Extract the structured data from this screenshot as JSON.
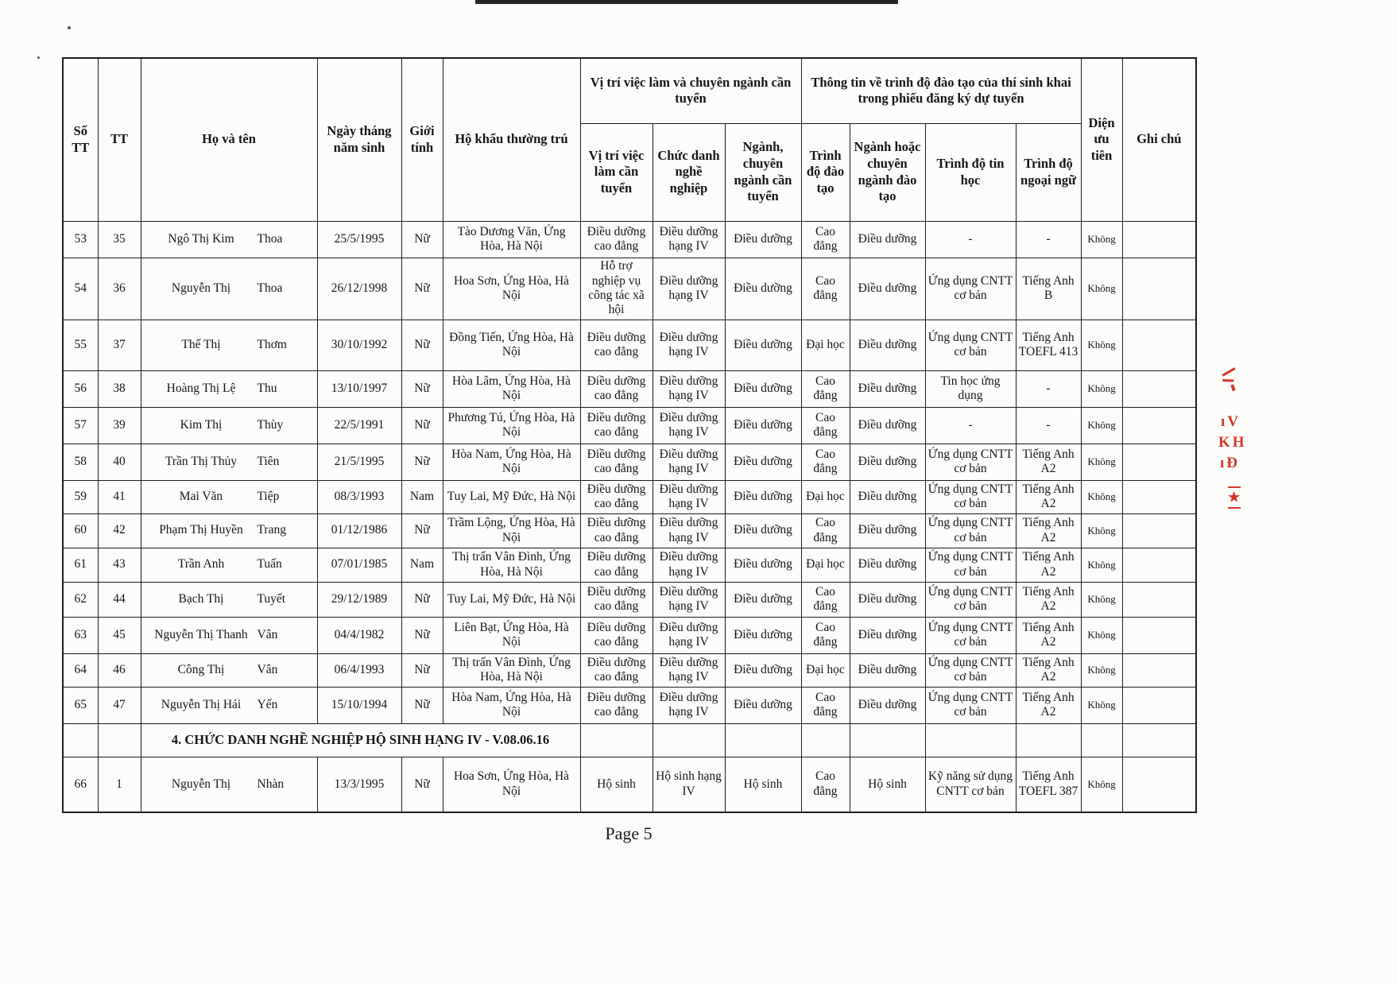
{
  "page": {
    "footer": "Page 5"
  },
  "table": {
    "columns": {
      "so_tt": "Số TT",
      "tt": "TT",
      "name": "Họ và tên",
      "dob": "Ngày tháng năm sinh",
      "gender": "Giới tính",
      "address": "Hộ khẩu thường trú",
      "position": "Vị trí việc làm cần tuyển",
      "title": "Chức danh nghề nghiệp",
      "major": "Ngành, chuyên ngành cần tuyển",
      "degree": "Trình độ đào tạo",
      "trained_major": "Ngành hoặc chuyên ngành đào tạo",
      "it": "Trình độ tin học",
      "language": "Trình độ ngoại ngữ",
      "priority": "Diện ưu tiên",
      "note": "Ghi chú"
    },
    "groups": {
      "recruitment": "Vị trí việc làm và chuyên ngành cần tuyển",
      "training": "Thông tin về trình độ đào tạo của thí sinh khai trong phiếu đăng ký dự tuyển"
    },
    "rows": [
      {
        "so_tt": "53",
        "tt": "35",
        "ho": "Ngô Thị Kim",
        "ten": "Thoa",
        "dob": "25/5/1995",
        "gender": "Nữ",
        "address": "Tào Dương Văn, Ứng Hòa, Hà Nội",
        "position": "Điều dưỡng cao đẳng",
        "title": "Điều dưỡng hạng IV",
        "major": "Điều dưỡng",
        "degree": "Cao đẳng",
        "trained_major": "Điều dưỡng",
        "it": "-",
        "language": "-",
        "priority": "Không",
        "note": ""
      },
      {
        "so_tt": "54",
        "tt": "36",
        "ho": "Nguyễn Thị",
        "ten": "Thoa",
        "dob": "26/12/1998",
        "gender": "Nữ",
        "address": "Hoa Sơn, Ứng Hòa, Hà Nội",
        "position": "Hỗ trợ nghiệp vụ công tác xã hội",
        "title": "Điều dưỡng hạng IV",
        "major": "Điều dưỡng",
        "degree": "Cao đẳng",
        "trained_major": "Điều dưỡng",
        "it": "Ứng dụng CNTT cơ bản",
        "language": "Tiếng Anh B",
        "priority": "Không",
        "note": ""
      },
      {
        "so_tt": "55",
        "tt": "37",
        "ho": "Thế Thị",
        "ten": "Thơm",
        "dob": "30/10/1992",
        "gender": "Nữ",
        "address": "Đồng Tiến, Ứng Hòa, Hà Nội",
        "position": "Điều dưỡng cao đẳng",
        "title": "Điều dưỡng hạng IV",
        "major": "Điều dưỡng",
        "degree": "Đại học",
        "trained_major": "Điều dưỡng",
        "it": "Ứng dụng CNTT cơ bản",
        "language": "Tiếng Anh TOEFL 413",
        "priority": "Không",
        "note": ""
      },
      {
        "so_tt": "56",
        "tt": "38",
        "ho": "Hoàng Thị Lệ",
        "ten": "Thu",
        "dob": "13/10/1997",
        "gender": "Nữ",
        "address": "Hòa Lâm, Ứng Hòa, Hà Nội",
        "position": "Điều dưỡng cao đẳng",
        "title": "Điều dưỡng hạng IV",
        "major": "Điều dưỡng",
        "degree": "Cao đẳng",
        "trained_major": "Điều dưỡng",
        "it": "Tin học ứng dụng",
        "language": "-",
        "priority": "Không",
        "note": ""
      },
      {
        "so_tt": "57",
        "tt": "39",
        "ho": "Kim Thị",
        "ten": "Thùy",
        "dob": "22/5/1991",
        "gender": "Nữ",
        "address": "Phương Tú, Ứng Hòa, Hà Nội",
        "position": "Điều dưỡng cao đẳng",
        "title": "Điều dưỡng hạng IV",
        "major": "Điều dưỡng",
        "degree": "Cao đẳng",
        "trained_major": "Điều dưỡng",
        "it": "-",
        "language": "-",
        "priority": "Không",
        "note": ""
      },
      {
        "so_tt": "58",
        "tt": "40",
        "ho": "Trần Thị Thủy",
        "ten": "Tiên",
        "dob": "21/5/1995",
        "gender": "Nữ",
        "address": "Hòa Nam, Ứng Hòa, Hà Nội",
        "position": "Điều dưỡng cao đẳng",
        "title": "Điều dưỡng hạng IV",
        "major": "Điều dưỡng",
        "degree": "Cao đẳng",
        "trained_major": "Điều dưỡng",
        "it": "Ứng dụng CNTT cơ bản",
        "language": "Tiếng Anh A2",
        "priority": "Không",
        "note": ""
      },
      {
        "so_tt": "59",
        "tt": "41",
        "ho": "Mai Văn",
        "ten": "Tiệp",
        "dob": "08/3/1993",
        "gender": "Nam",
        "address": "Tuy Lai, Mỹ Đức, Hà Nội",
        "position": "Điều dưỡng cao đẳng",
        "title": "Điều dưỡng hạng IV",
        "major": "Điều dưỡng",
        "degree": "Đại học",
        "trained_major": "Điều dưỡng",
        "it": "Ứng dụng CNTT cơ bản",
        "language": "Tiếng Anh A2",
        "priority": "Không",
        "note": ""
      },
      {
        "so_tt": "60",
        "tt": "42",
        "ho": "Phạm Thị Huyền",
        "ten": "Trang",
        "dob": "01/12/1986",
        "gender": "Nữ",
        "address": "Trầm Lộng, Ứng Hòa, Hà Nội",
        "position": "Điều dưỡng cao đẳng",
        "title": "Điều dưỡng hạng IV",
        "major": "Điều dưỡng",
        "degree": "Cao đẳng",
        "trained_major": "Điều dưỡng",
        "it": "Ứng dụng CNTT cơ bản",
        "language": "Tiếng Anh A2",
        "priority": "Không",
        "note": ""
      },
      {
        "so_tt": "61",
        "tt": "43",
        "ho": "Trần Anh",
        "ten": "Tuấn",
        "dob": "07/01/1985",
        "gender": "Nam",
        "address": "Thị trấn Vân Đình, Ứng Hòa, Hà Nội",
        "position": "Điều dưỡng cao đẳng",
        "title": "Điều dưỡng hạng IV",
        "major": "Điều dưỡng",
        "degree": "Đại học",
        "trained_major": "Điều dưỡng",
        "it": "Ứng dụng CNTT cơ bản",
        "language": "Tiếng Anh A2",
        "priority": "Không",
        "note": ""
      },
      {
        "so_tt": "62",
        "tt": "44",
        "ho": "Bạch Thị",
        "ten": "Tuyết",
        "dob": "29/12/1989",
        "gender": "Nữ",
        "address": "Tuy Lai, Mỹ Đức, Hà Nội",
        "position": "Điều dưỡng cao đẳng",
        "title": "Điều dưỡng hạng IV",
        "major": "Điều dưỡng",
        "degree": "Cao đẳng",
        "trained_major": "Điều dưỡng",
        "it": "Ứng dụng CNTT cơ bản",
        "language": "Tiếng Anh A2",
        "priority": "Không",
        "note": ""
      },
      {
        "so_tt": "63",
        "tt": "45",
        "ho": "Nguyễn Thị Thanh",
        "ten": "Vân",
        "dob": "04/4/1982",
        "gender": "Nữ",
        "address": "Liên Bạt, Ứng Hòa, Hà Nội",
        "position": "Điều dưỡng cao đẳng",
        "title": "Điều dưỡng hạng IV",
        "major": "Điều dưỡng",
        "degree": "Cao đẳng",
        "trained_major": "Điều dưỡng",
        "it": "Ứng dụng CNTT cơ bản",
        "language": "Tiếng Anh A2",
        "priority": "Không",
        "note": ""
      },
      {
        "so_tt": "64",
        "tt": "46",
        "ho": "Công Thị",
        "ten": "Vân",
        "dob": "06/4/1993",
        "gender": "Nữ",
        "address": "Thị trấn Vân Đình, Ứng Hòa, Hà Nội",
        "position": "Điều dưỡng cao đẳng",
        "title": "Điều dưỡng hạng IV",
        "major": "Điều dưỡng",
        "degree": "Đại học",
        "trained_major": "Điều dưỡng",
        "it": "Ứng dụng CNTT cơ bản",
        "language": "Tiếng Anh A2",
        "priority": "Không",
        "note": ""
      },
      {
        "so_tt": "65",
        "tt": "47",
        "ho": "Nguyễn Thị Hải",
        "ten": "Yến",
        "dob": "15/10/1994",
        "gender": "Nữ",
        "address": "Hòa Nam, Ứng Hòa, Hà Nội",
        "position": "Điều dưỡng cao đẳng",
        "title": "Điều dưỡng hạng IV",
        "major": "Điều dưỡng",
        "degree": "Cao đẳng",
        "trained_major": "Điều dưỡng",
        "it": "Ứng dụng CNTT cơ bản",
        "language": "Tiếng Anh A2",
        "priority": "Không",
        "note": ""
      },
      {
        "section": "4. CHỨC DANH NGHỀ NGHIỆP HỘ SINH HẠNG IV - V.08.06.16"
      },
      {
        "so_tt": "66",
        "tt": "1",
        "ho": "Nguyễn Thị",
        "ten": "Nhàn",
        "dob": "13/3/1995",
        "gender": "Nữ",
        "address": "Hoa Sơn, Ứng Hòa, Hà Nội",
        "position": "Hộ sinh",
        "title": "Hộ sinh hạng IV",
        "major": "Hộ sinh",
        "degree": "Cao đẳng",
        "trained_major": "Hộ sinh",
        "it": "Kỹ năng sử dụng CNTT cơ bản",
        "language": "Tiếng Anh TOEFL 387",
        "priority": "Không",
        "note": ""
      }
    ]
  },
  "stamp": {
    "fragments": [
      "ıV",
      "KH",
      "ıĐ",
      "★"
    ]
  }
}
